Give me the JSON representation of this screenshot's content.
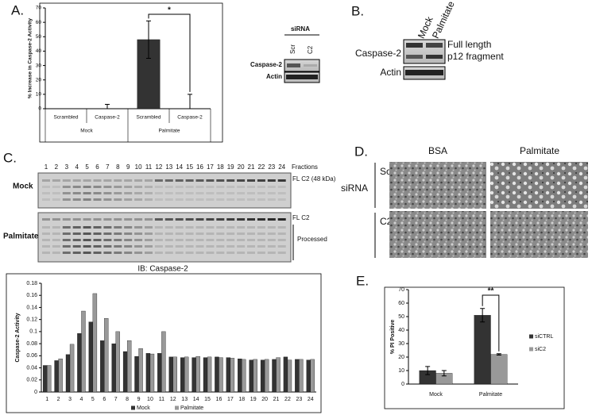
{
  "panel_labels": [
    "A.",
    "B.",
    "C.",
    "D.",
    "E."
  ],
  "blot_a": {
    "header": "siRNA",
    "lanes": [
      "Scr",
      "C2"
    ],
    "rows": [
      "Caspase-2",
      "Actin"
    ]
  },
  "blot_b": {
    "lanes": [
      "Mock",
      "Palmitate"
    ],
    "rows": [
      "Caspase-2",
      "Actin"
    ],
    "bands": [
      "Full length",
      "p12 fragment"
    ]
  },
  "blot_c": {
    "fractions": [
      "1",
      "2",
      "3",
      "4",
      "5",
      "6",
      "7",
      "8",
      "9",
      "10",
      "11",
      "12",
      "13",
      "14",
      "15",
      "16",
      "17",
      "18",
      "19",
      "20",
      "21",
      "22",
      "23",
      "24"
    ],
    "fractions_label": "Fractions",
    "rows": [
      "Mock",
      "Palmitate"
    ],
    "markers": [
      "FL C2 (48 kDa)",
      "FL C2",
      "Processed"
    ],
    "caption": "IB: Caspase-2"
  },
  "micrographs": {
    "columns": [
      "BSA",
      "Palmitate"
    ],
    "rows": [
      "Scr",
      "C2"
    ],
    "group": "siRNA"
  },
  "chart_data": [
    {
      "type": "bar",
      "ylabel": "% Increase in Caspase-2 Activity",
      "categories": [
        "Scrambled",
        "Caspase-2",
        "Scrambled",
        "Caspase-2"
      ],
      "groups": [
        "Mock",
        "Palmitate"
      ],
      "series": [
        {
          "color": "#333333",
          "values": [
            0,
            0,
            48,
            0
          ],
          "errors": [
            0,
            3,
            13,
            10
          ]
        }
      ],
      "ylim": [
        0,
        70
      ],
      "yticks": [
        0,
        10,
        20,
        30,
        40,
        50,
        60,
        70
      ],
      "grid": false,
      "annotation": "*"
    },
    {
      "type": "bar",
      "ylabel": "Caspase-2 Activity",
      "categories": [
        "1",
        "2",
        "3",
        "4",
        "5",
        "6",
        "7",
        "8",
        "9",
        "10",
        "11",
        "12",
        "13",
        "14",
        "15",
        "16",
        "17",
        "18",
        "19",
        "20",
        "21",
        "22",
        "23",
        "24"
      ],
      "series": [
        {
          "name": "Mock",
          "color": "#333333",
          "values": [
            0.044,
            0.052,
            0.062,
            0.097,
            0.116,
            0.085,
            0.08,
            0.067,
            0.059,
            0.064,
            0.064,
            0.058,
            0.057,
            0.057,
            0.057,
            0.058,
            0.057,
            0.055,
            0.053,
            0.053,
            0.054,
            0.058,
            0.054,
            0.053
          ]
        },
        {
          "name": "Palmitate",
          "color": "#999999",
          "values": [
            0.044,
            0.055,
            0.079,
            0.134,
            0.163,
            0.122,
            0.1,
            0.085,
            0.072,
            0.063,
            0.1,
            0.058,
            0.058,
            0.059,
            0.058,
            0.057,
            0.056,
            0.054,
            0.054,
            0.054,
            0.057,
            0.053,
            0.054,
            0.054
          ]
        }
      ],
      "ylim": [
        0,
        0.18
      ],
      "yticks": [
        0,
        0.02,
        0.04,
        0.06,
        0.08,
        0.1,
        0.12,
        0.14,
        0.16,
        0.18
      ],
      "grid": false,
      "legend": "bottom"
    },
    {
      "type": "bar",
      "ylabel": "% PI Positive",
      "categories": [
        "Mock",
        "Palmitate"
      ],
      "series": [
        {
          "name": "siCTRL",
          "color": "#333333",
          "values": [
            10,
            51
          ],
          "errors": [
            3,
            5
          ]
        },
        {
          "name": "siC2",
          "color": "#999999",
          "values": [
            8,
            22
          ],
          "errors": [
            2,
            0.5
          ]
        }
      ],
      "ylim": [
        0,
        70
      ],
      "yticks": [
        0,
        10,
        20,
        30,
        40,
        50,
        60,
        70
      ],
      "grid": false,
      "legend": "right",
      "annotation": "**"
    }
  ]
}
